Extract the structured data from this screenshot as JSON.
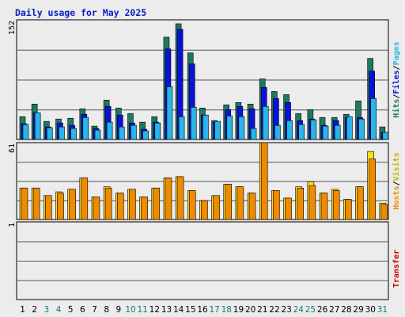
{
  "chart_data": {
    "type": "bar",
    "title": "Daily usage for May 2025",
    "categories": [
      "1",
      "2",
      "3",
      "4",
      "5",
      "6",
      "7",
      "8",
      "9",
      "10",
      "11",
      "12",
      "13",
      "14",
      "15",
      "16",
      "17",
      "18",
      "19",
      "20",
      "21",
      "22",
      "23",
      "24",
      "25",
      "26",
      "27",
      "28",
      "29",
      "30",
      "31"
    ],
    "weekend_days": [
      "3",
      "4",
      "10",
      "11",
      "17",
      "18",
      "24",
      "25",
      "31"
    ],
    "panels": [
      {
        "name": "traffic",
        "max_label": "152",
        "ylim": [
          0,
          152
        ],
        "side_label": [
          "Hits",
          "Files",
          "Pages"
        ],
        "series": [
          {
            "name": "Hits",
            "color": "#1e7a5e",
            "values": [
              29,
              45,
              23,
              26,
              27,
              39,
              17,
              50,
              40,
              33,
              22,
              29,
              130,
              147,
              110,
              40,
              24,
              44,
              47,
              45,
              77,
              61,
              57,
              33,
              38,
              28,
              28,
              32,
              49,
              103,
              16
            ]
          },
          {
            "name": "Files",
            "color": "#0a12d9",
            "values": [
              20,
              34,
              16,
              21,
              18,
              32,
              14,
              42,
              31,
              21,
              13,
              22,
              115,
              140,
              96,
              31,
              22,
              38,
              42,
              39,
              66,
              52,
              47,
              24,
              26,
              18,
              24,
              28,
              28,
              87,
              9
            ]
          },
          {
            "name": "Pages",
            "color": "#29b5e8",
            "values": [
              19,
              34,
              15,
              16,
              14,
              28,
              12,
              22,
              16,
              18,
              11,
              21,
              67,
              29,
              41,
              31,
              23,
              30,
              29,
              14,
              42,
              18,
              24,
              19,
              25,
              17,
              18,
              29,
              26,
              52,
              9
            ]
          }
        ]
      },
      {
        "name": "visits",
        "max_label": "61",
        "ylim": [
          0,
          61
        ],
        "side_label": [
          "Hosts",
          "Visits"
        ],
        "series": [
          {
            "name": "Visits",
            "color": "#f4e01c",
            "values": [
              25,
              25,
              19,
              22,
              24,
              33,
              18,
              26,
              21,
              24,
              18,
              25,
              33,
              34,
              23,
              15,
              19,
              28,
              26,
              21,
              61,
              23,
              17,
              26,
              30,
              21,
              24,
              16,
              26,
              54,
              13
            ]
          },
          {
            "name": "Hosts",
            "color": "#f08a00",
            "values": [
              25,
              25,
              19,
              21,
              24,
              33,
              18,
              25,
              21,
              24,
              18,
              25,
              33,
              34,
              23,
              15,
              19,
              28,
              26,
              21,
              61,
              23,
              17,
              25,
              27,
              21,
              23,
              16,
              26,
              48,
              12
            ]
          }
        ]
      },
      {
        "name": "transfer",
        "max_label": "1",
        "ylim": [
          0,
          1
        ],
        "side_label": [
          "Transfer"
        ],
        "series": [
          {
            "name": "Transfer",
            "color": "#cc0000",
            "values": [
              0,
              0,
              0,
              0,
              0,
              0,
              0,
              0,
              0,
              0,
              0,
              0,
              0,
              0,
              0,
              0,
              0,
              0,
              0,
              0,
              0,
              0,
              0,
              0,
              0,
              0,
              0,
              0,
              0,
              0,
              0
            ]
          }
        ]
      }
    ],
    "colors": {
      "background": "#ececec",
      "frame": "#000000",
      "grid": "#555555",
      "title": "#0b1cc4",
      "weekday_label": "#000000",
      "weekend_label": "#127a6e",
      "label_hits": "#1e7a5e",
      "label_files": "#0a12d9",
      "label_pages": "#29b5e8",
      "label_hosts": "#f08a00",
      "label_visits": "#c8b400",
      "label_transfer": "#cc0000",
      "label_sep": "#000000"
    },
    "grid": true
  }
}
